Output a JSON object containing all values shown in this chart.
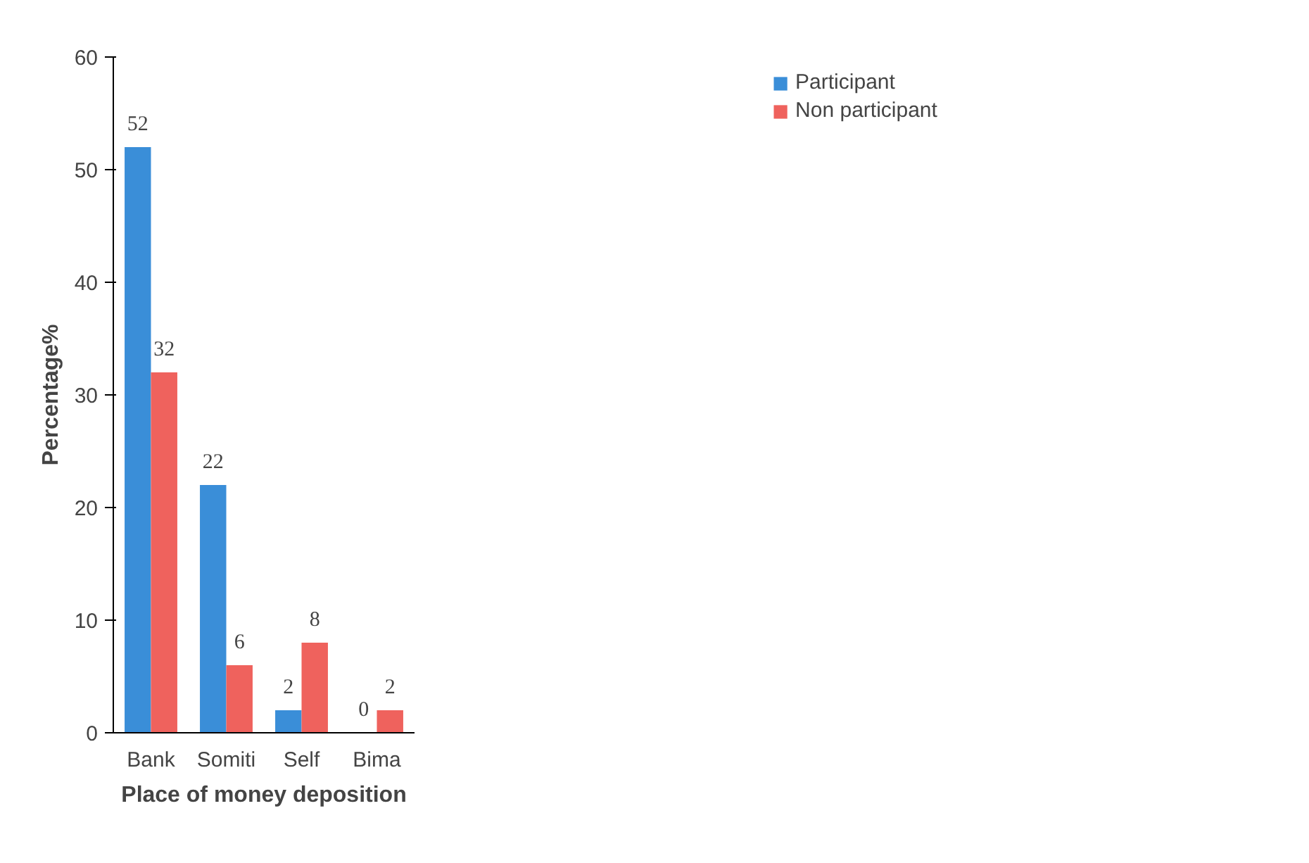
{
  "chart_data": {
    "type": "bar",
    "xlabel": "Place of money deposition",
    "ylabel": "Percentage%",
    "categories": [
      "Bank",
      "Somiti",
      "Self",
      "Bima"
    ],
    "series": [
      {
        "name": "Participant",
        "color": "#3a8ed8",
        "values": [
          52,
          22,
          2,
          0
        ]
      },
      {
        "name": "Non participant",
        "color": "#ef625d",
        "values": [
          32,
          6,
          8,
          2
        ]
      }
    ],
    "ylim": [
      0,
      60
    ],
    "yticks": [
      0,
      10,
      20,
      30,
      40,
      50,
      60
    ],
    "grid": false,
    "legend": "top right",
    "data_labels": true
  }
}
